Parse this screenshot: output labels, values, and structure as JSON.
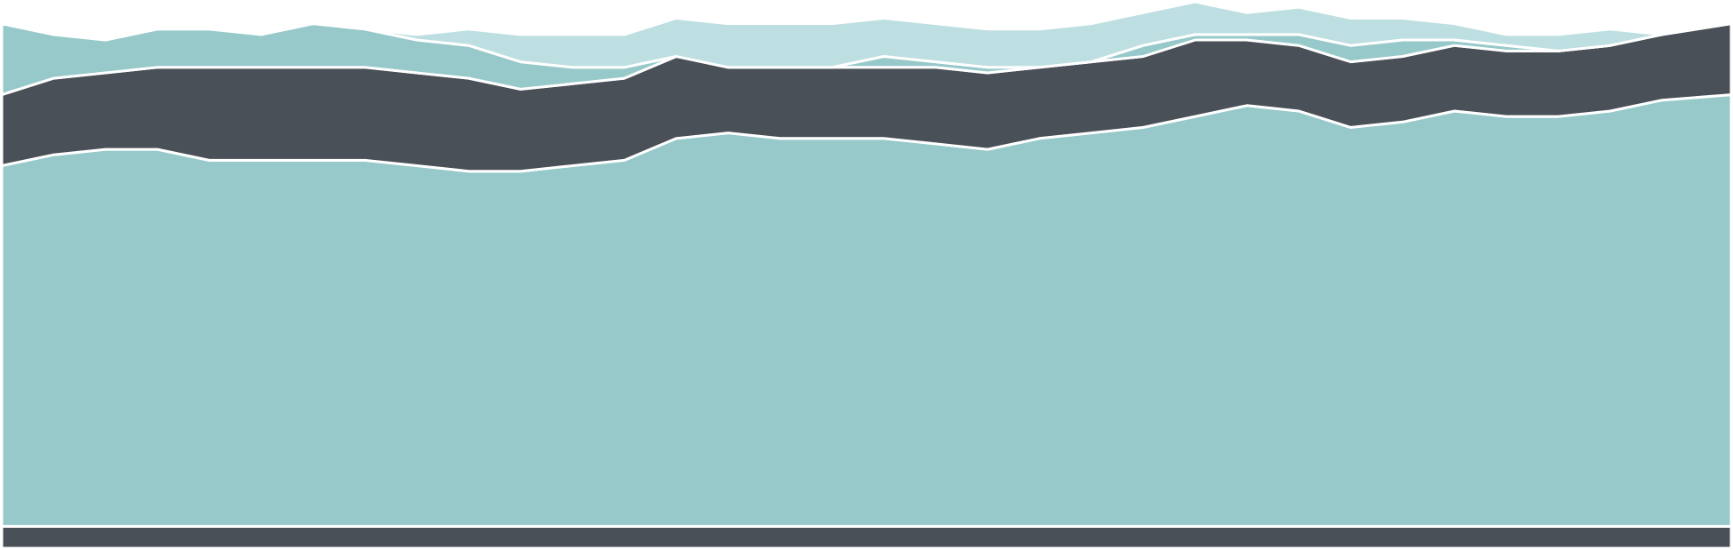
{
  "chart_data": {
    "type": "area",
    "stacked": true,
    "x": [
      0,
      3,
      6,
      9,
      12,
      15,
      18,
      21,
      24,
      27,
      30,
      33,
      36,
      39,
      42,
      45,
      48,
      51,
      54,
      57,
      60,
      63,
      66,
      69,
      72,
      75,
      78,
      81,
      84,
      87,
      90,
      93,
      96,
      100
    ],
    "xlim": [
      0,
      100
    ],
    "ylim": [
      0,
      100
    ],
    "grid": false,
    "legend": "none",
    "title": "",
    "xlabel": "",
    "ylabel": "",
    "series": [
      {
        "color": "#4a5058",
        "values": [
          4,
          4,
          4,
          4,
          4,
          4,
          4,
          4,
          4,
          4,
          4,
          4,
          4,
          4,
          4,
          4,
          4,
          4,
          4,
          4,
          4,
          4,
          4,
          4,
          4,
          4,
          4,
          4,
          4,
          4,
          4,
          4,
          4,
          4
        ]
      },
      {
        "color": "#97c9ca",
        "values": [
          66,
          68,
          69,
          69,
          67,
          67,
          67,
          67,
          66,
          65,
          65,
          66,
          67,
          71,
          72,
          71,
          71,
          71,
          70,
          69,
          71,
          72,
          73,
          75,
          77,
          76,
          73,
          74,
          76,
          75,
          75,
          76,
          78,
          79
        ]
      },
      {
        "color": "#4a5058",
        "values": [
          13,
          14,
          14,
          15,
          17,
          17,
          17,
          17,
          17,
          17,
          15,
          15,
          15,
          15,
          12,
          13,
          13,
          13,
          14,
          14,
          13,
          13,
          13,
          14,
          12,
          12,
          12,
          12,
          12,
          12,
          12,
          12,
          12,
          13
        ]
      },
      {
        "color": "#97c9ca",
        "values": [
          13,
          8,
          6,
          7,
          7,
          6,
          8,
          7,
          6,
          6,
          5,
          3,
          2,
          0,
          0,
          0,
          0,
          2,
          1,
          1,
          0,
          0,
          2,
          1,
          1,
          2,
          3,
          3,
          1,
          1,
          0,
          0,
          0,
          0
        ]
      },
      {
        "color": "#bedfe1",
        "values": [
          0,
          0,
          0,
          0,
          0,
          0,
          0,
          0,
          1,
          3,
          5,
          6,
          6,
          7,
          8,
          8,
          8,
          7,
          7,
          7,
          7,
          7,
          6,
          6,
          4,
          5,
          5,
          4,
          3,
          2,
          3,
          3,
          0,
          0
        ]
      }
    ]
  }
}
